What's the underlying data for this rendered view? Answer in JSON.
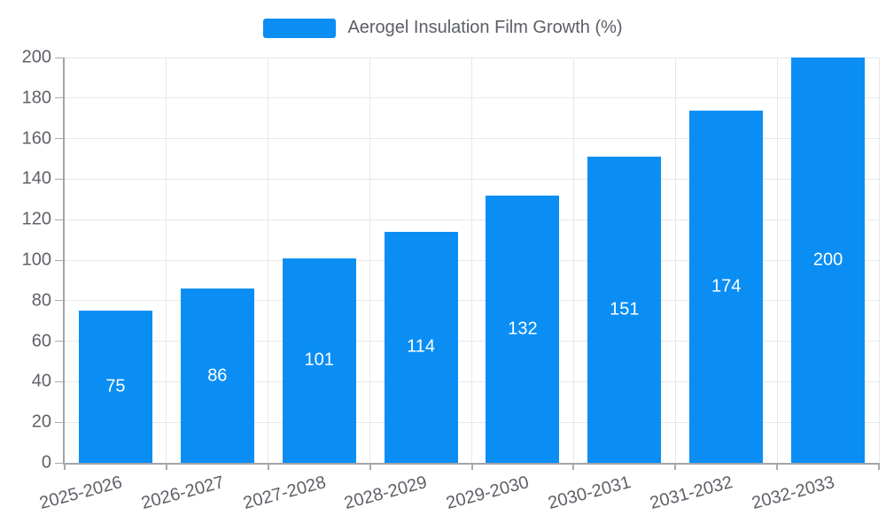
{
  "legend": {
    "label": "Aerogel Insulation Film Growth (%)"
  },
  "colors": {
    "bar": "#0a8ef4",
    "value_label": "#ffffff",
    "grid": "#e7e7ea",
    "axis": "#a2a4a9",
    "axis_text": "#5e6167"
  },
  "chart_data": {
    "type": "bar",
    "title": "Aerogel Insulation Film Growth (%)",
    "categories": [
      "2025-2026",
      "2026-2027",
      "2027-2028",
      "2028-2029",
      "2029-2030",
      "2030-2031",
      "2031-2032",
      "2032-2033"
    ],
    "values": [
      75,
      86,
      101,
      114,
      132,
      151,
      174,
      200
    ],
    "xlabel": "",
    "ylabel": "",
    "ylim": [
      0,
      200
    ],
    "ytick_step": 20,
    "ytick_labels": [
      "0",
      "20",
      "40",
      "60",
      "80",
      "100",
      "120",
      "140",
      "160",
      "180",
      "200"
    ],
    "grid": true,
    "legend_position": "top",
    "value_labels": "inside-center",
    "xlabel_rotation_deg": -15
  }
}
